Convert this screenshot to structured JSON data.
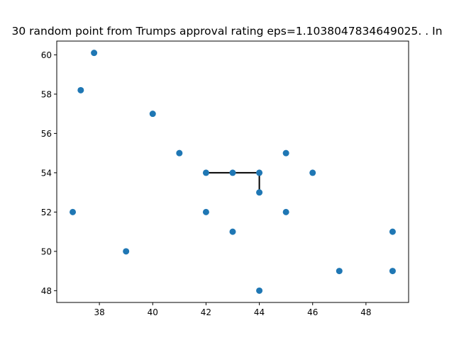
{
  "chart_data": {
    "type": "scatter",
    "title": "30 random point from Trumps approval rating eps=1.1038047834649025. . In",
    "xlabel": "",
    "ylabel": "",
    "xlim": [
      36.4,
      49.6
    ],
    "ylim": [
      47.4,
      60.7
    ],
    "xticks": [
      38,
      40,
      42,
      44,
      46,
      48
    ],
    "yticks": [
      48,
      50,
      52,
      54,
      56,
      58,
      60
    ],
    "grid": false,
    "point_color": "#1f77b4",
    "line_color": "#000000",
    "points": [
      {
        "x": 37.8,
        "y": 60.1
      },
      {
        "x": 37.3,
        "y": 58.2
      },
      {
        "x": 40,
        "y": 57
      },
      {
        "x": 41,
        "y": 55
      },
      {
        "x": 45,
        "y": 55
      },
      {
        "x": 42,
        "y": 54
      },
      {
        "x": 43,
        "y": 54
      },
      {
        "x": 44,
        "y": 54
      },
      {
        "x": 46,
        "y": 54
      },
      {
        "x": 44,
        "y": 53
      },
      {
        "x": 37,
        "y": 52
      },
      {
        "x": 42,
        "y": 52
      },
      {
        "x": 45,
        "y": 52
      },
      {
        "x": 43,
        "y": 51
      },
      {
        "x": 49,
        "y": 51
      },
      {
        "x": 39,
        "y": 50
      },
      {
        "x": 47,
        "y": 49
      },
      {
        "x": 49,
        "y": 49
      },
      {
        "x": 44,
        "y": 48
      }
    ],
    "segments": [
      {
        "from": [
          42,
          54
        ],
        "to": [
          43,
          54
        ]
      },
      {
        "from": [
          43,
          54
        ],
        "to": [
          44,
          54
        ]
      },
      {
        "from": [
          44,
          54
        ],
        "to": [
          44,
          53
        ]
      }
    ]
  }
}
